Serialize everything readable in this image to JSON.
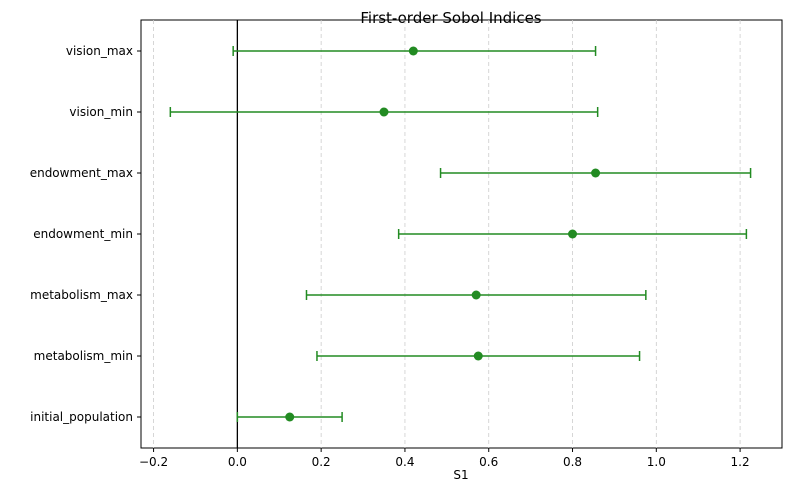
{
  "chart_data": {
    "type": "errorbar",
    "title": "First-order Sobol Indices",
    "xlabel": "S1",
    "ylabel": "",
    "xlim": [
      -0.23,
      1.3
    ],
    "x_ticks": [
      -0.2,
      0.0,
      0.2,
      0.4,
      0.6,
      0.8,
      1.0,
      1.2
    ],
    "x_tick_labels": [
      "−0.2",
      "0.0",
      "0.2",
      "0.4",
      "0.6",
      "0.8",
      "1.0",
      "1.2"
    ],
    "grid": "x-only dashed",
    "reference_line_x": 0,
    "color": "#228B22",
    "categories": [
      "vision_max",
      "vision_min",
      "endowment_max",
      "endowment_min",
      "metabolism_max",
      "metabolism_min",
      "initial_population"
    ],
    "values": [
      0.42,
      0.35,
      0.855,
      0.8,
      0.57,
      0.575,
      0.125
    ],
    "lower": [
      -0.01,
      -0.16,
      0.485,
      0.385,
      0.165,
      0.19,
      0.0
    ],
    "upper": [
      0.855,
      0.86,
      1.225,
      1.215,
      0.975,
      0.96,
      0.25
    ]
  }
}
